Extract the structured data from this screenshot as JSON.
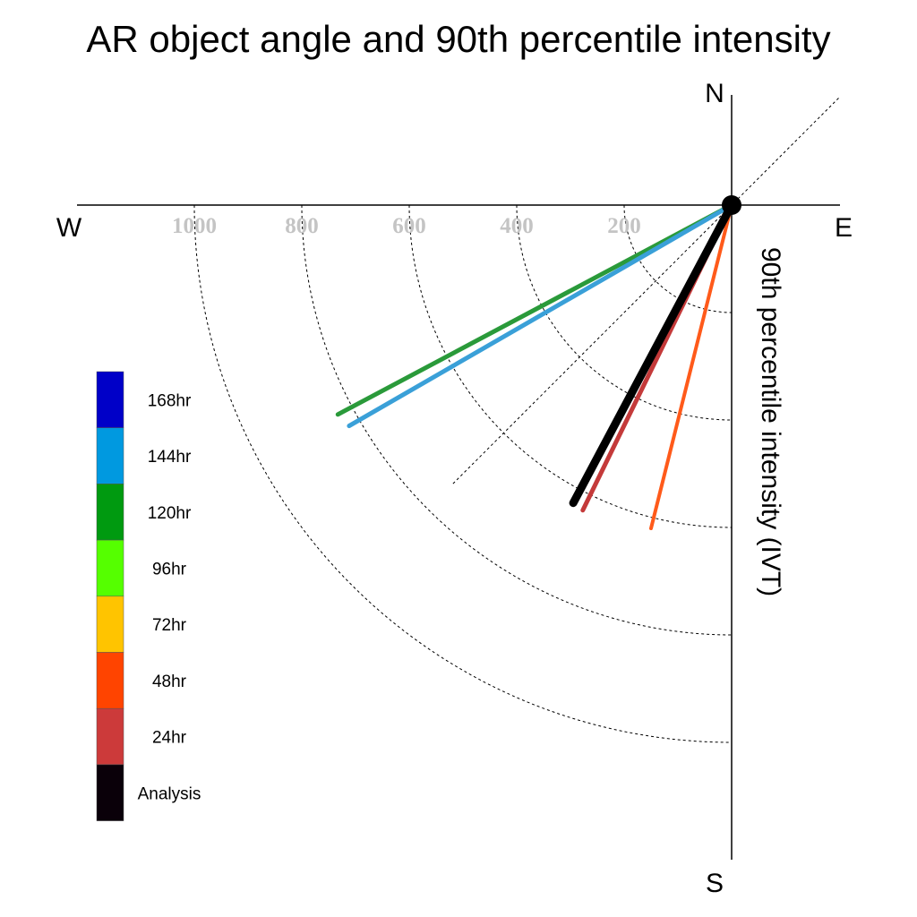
{
  "chart_data": {
    "type": "polar-line",
    "title": "AR object angle and 90th percentile intensity",
    "ylabel": "90th percentile intensity (IVT)",
    "directions": {
      "north": "N",
      "south": "S",
      "east": "E",
      "west": "W"
    },
    "radial_ticks": [
      200,
      400,
      600,
      800,
      1000
    ],
    "radial_tick_labels": [
      "200",
      "400",
      "600",
      "800",
      "1000"
    ],
    "rlim": [
      0,
      1200
    ],
    "grid": true,
    "legend_position": "left",
    "legend": [
      {
        "label": "168hr",
        "color": "#0000c8"
      },
      {
        "label": "144hr",
        "color": "#0099e0"
      },
      {
        "label": "120hr",
        "color": "#009a10"
      },
      {
        "label": "96hr",
        "color": "#55ff00"
      },
      {
        "label": "72hr",
        "color": "#ffc400"
      },
      {
        "label": "48hr",
        "color": "#ff4400"
      },
      {
        "label": "24hr",
        "color": "#cc3a3a"
      },
      {
        "label": "Analysis",
        "color": "#0a0009"
      }
    ],
    "series": [
      {
        "name": "120hr",
        "bearing_deg": 242,
        "intensity": 830,
        "color": "#2a9a3a",
        "width": 5
      },
      {
        "name": "144hr",
        "bearing_deg": 240,
        "intensity": 822,
        "color": "#3aa0d8",
        "width": 5
      },
      {
        "name": "48hr",
        "bearing_deg": 194,
        "intensity": 620,
        "color": "#ff5a1a",
        "width": 4
      },
      {
        "name": "24hr",
        "bearing_deg": 206,
        "intensity": 632,
        "color": "#c43a3a",
        "width": 5
      },
      {
        "name": "Analysis",
        "bearing_deg": 208,
        "intensity": 628,
        "color": "#000000",
        "width": 9
      }
    ]
  }
}
